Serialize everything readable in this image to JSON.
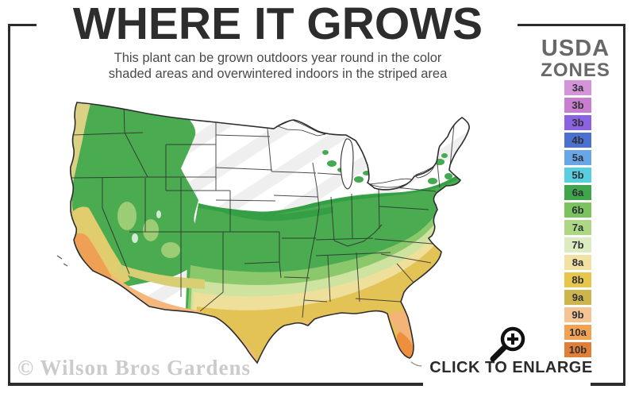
{
  "header": {
    "title": "WHERE IT GROWS",
    "subtitle_line1": "This plant can be grown outdoors year round in the color",
    "subtitle_line2": "shaded areas and overwintered indoors in the striped area"
  },
  "legend": {
    "title_line1": "USDA",
    "title_line2": "ZONES",
    "zones": [
      {
        "label": "3a",
        "color": "#d594da"
      },
      {
        "label": "3b",
        "color": "#c77ecf"
      },
      {
        "label": "3b",
        "color": "#8b62e1"
      },
      {
        "label": "4b",
        "color": "#4a70d0"
      },
      {
        "label": "5a",
        "color": "#68a6e5"
      },
      {
        "label": "5b",
        "color": "#58cfdf"
      },
      {
        "label": "6a",
        "color": "#3ea54b"
      },
      {
        "label": "6b",
        "color": "#7ac35f"
      },
      {
        "label": "7a",
        "color": "#add883"
      },
      {
        "label": "7b",
        "color": "#dcecc0"
      },
      {
        "label": "8a",
        "color": "#f1e2a3"
      },
      {
        "label": "8b",
        "color": "#e7c64e"
      },
      {
        "label": "9a",
        "color": "#cdb54d"
      },
      {
        "label": "9b",
        "color": "#f5c495"
      },
      {
        "label": "10a",
        "color": "#f2a253"
      },
      {
        "label": "10b",
        "color": "#e17e37"
      }
    ]
  },
  "footer": {
    "watermark": "© Wilson Bros Gardens",
    "enlarge_label": "CLICK TO ENLARGE"
  },
  "map": {
    "alt": "Continental United States map shaded by USDA hardiness zone colors; striped white area across the north indicates overwintering indoors"
  },
  "chart_data": {
    "type": "heatmap",
    "title": "WHERE IT GROWS",
    "legend_title": "USDA ZONES",
    "legend_position": "right",
    "categories": [
      "3a",
      "3b",
      "3b",
      "4b",
      "5a",
      "5b",
      "6a",
      "6b",
      "7a",
      "7b",
      "8a",
      "8b",
      "9a",
      "9b",
      "10a",
      "10b"
    ],
    "series": [
      {
        "name": "zone-colors",
        "values": [
          "#d594da",
          "#c77ecf",
          "#8b62e1",
          "#4a70d0",
          "#68a6e5",
          "#58cfdf",
          "#3ea54b",
          "#7ac35f",
          "#add883",
          "#dcecc0",
          "#f1e2a3",
          "#e7c64e",
          "#cdb54d",
          "#f5c495",
          "#f2a253",
          "#e17e37"
        ]
      }
    ],
    "annotations": [
      "Northern plains, upper Midwest, upstate New York and northern New England shown white with diagonal stripes (overwinter indoors)",
      "Mid-latitude band shaded green (zones 6a-7a)",
      "Southern band shaded pale yellow to gold (zones 7b-9a)",
      "South Texas, central/south Florida and the California coast shaded peach to orange (zones 9b-10b)"
    ]
  },
  "colors": {
    "frame": "#2c2c2c",
    "title": "#2d2d2d",
    "subtitle": "#4a4a4a",
    "legend_title": "#686868",
    "watermark": "#cbcbcb",
    "stripe": "#efefef"
  }
}
